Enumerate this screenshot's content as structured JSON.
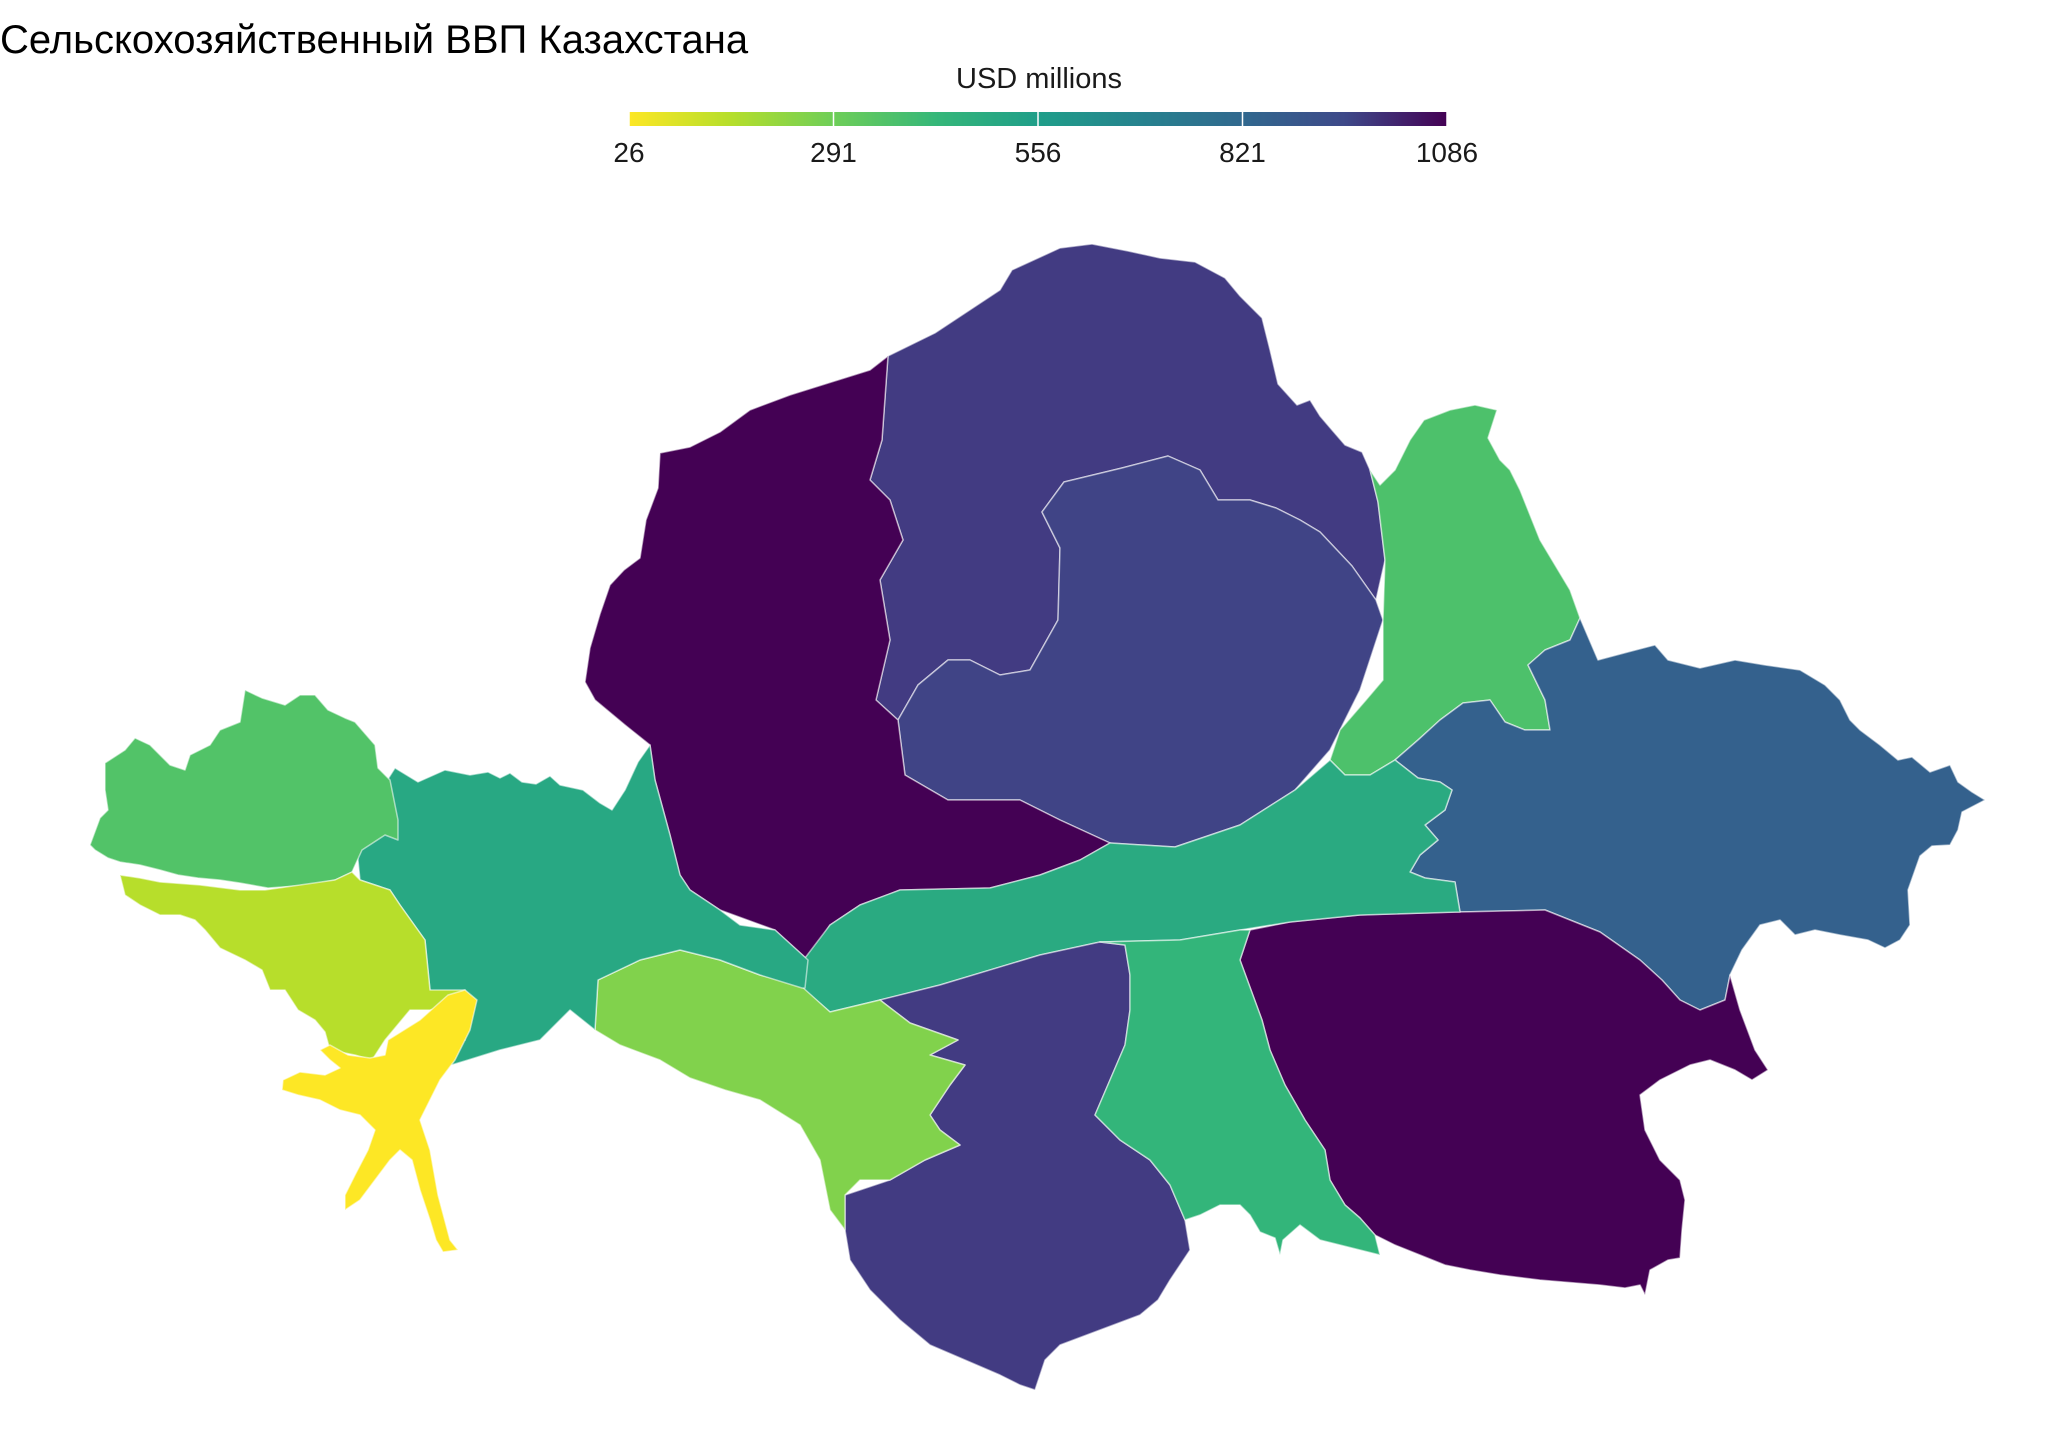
{
  "title": "Сельскохозяйственный ВВП Казахстана",
  "legend": {
    "title": "USD millions",
    "min": 26,
    "max": 1086,
    "ticks": [
      "26",
      "291",
      "556",
      "821",
      "1086"
    ],
    "tick_values": [
      26,
      291,
      556,
      821,
      1086
    ],
    "palette": "viridis",
    "orientation": "horizontal"
  },
  "map": {
    "type": "cartogram-choropleth",
    "regions": [
      {
        "id": "north-center",
        "value": 900
      },
      {
        "id": "north-inner",
        "value": 870
      },
      {
        "id": "north-west-large",
        "value": 1086
      },
      {
        "id": "north-east",
        "value": 330
      },
      {
        "id": "east",
        "value": 760
      },
      {
        "id": "south-east",
        "value": 1086
      },
      {
        "id": "central-band",
        "value": 440
      },
      {
        "id": "south-center",
        "value": 900
      },
      {
        "id": "south-center-right",
        "value": 390
      },
      {
        "id": "south-west-mid",
        "value": 230
      },
      {
        "id": "west-mid",
        "value": 450
      },
      {
        "id": "north-west-small",
        "value": 320
      },
      {
        "id": "west",
        "value": 140
      },
      {
        "id": "far-west",
        "value": 26
      }
    ]
  }
}
